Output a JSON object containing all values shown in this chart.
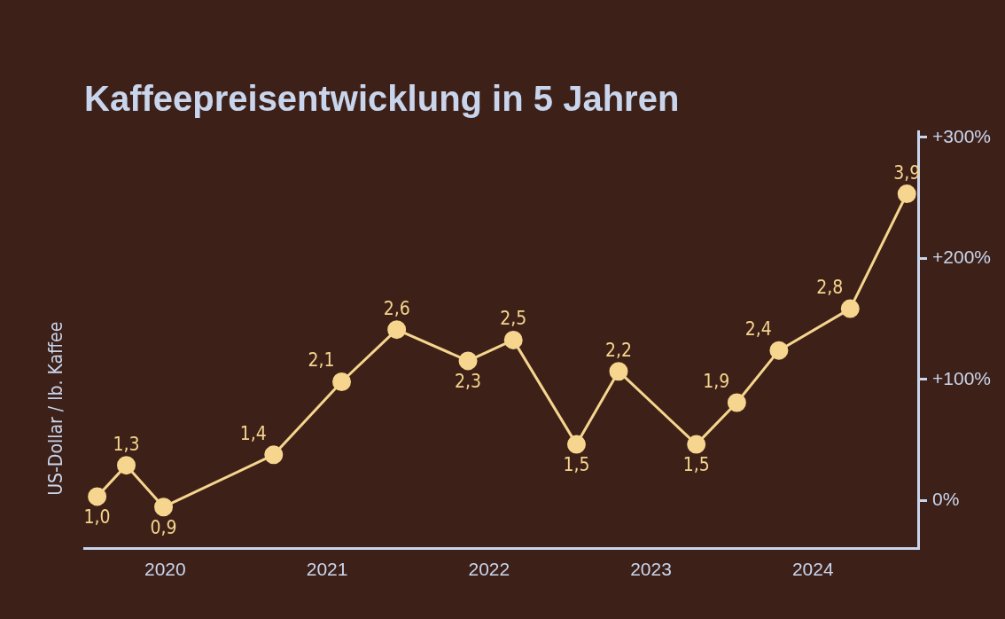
{
  "chart_data": {
    "type": "line",
    "title": "Kaffeepreisentwicklung in 5 Jahren",
    "ylabel": "US-Dollar / lb. Kaffee",
    "x": [
      2020.08,
      2020.26,
      2020.49,
      2021.17,
      2021.59,
      2021.93,
      2022.37,
      2022.65,
      2023.04,
      2023.3,
      2023.78,
      2024.03,
      2024.29,
      2024.73,
      2025.08
    ],
    "series": [
      {
        "color": "#f6d58e",
        "values": [
          1.0,
          1.3,
          0.9,
          1.4,
          2.1,
          2.6,
          2.3,
          2.5,
          1.5,
          2.2,
          1.5,
          1.9,
          2.4,
          2.8,
          3.9
        ],
        "value_labels": [
          "1,0",
          "1,3",
          "0,9",
          "1,4",
          "2,1",
          "2,6",
          "2,3",
          "2,5",
          "1,5",
          "2,2",
          "1,5",
          "1,9",
          "2,4",
          "2,8",
          "3,9"
        ]
      }
    ],
    "xlim": [
      2020,
      2025.15
    ],
    "xticks": [
      {
        "value": 2020.5,
        "label": "2020"
      },
      {
        "value": 2021.5,
        "label": "2021"
      },
      {
        "value": 2022.5,
        "label": "2022"
      },
      {
        "value": 2023.5,
        "label": "2023"
      },
      {
        "value": 2024.5,
        "label": "2024"
      }
    ],
    "y2lim": [
      -40,
      305
    ],
    "y2ticks": [
      {
        "value": 0,
        "label": "0%"
      },
      {
        "value": 100,
        "label": "+100%"
      },
      {
        "value": 200,
        "label": "+200%"
      },
      {
        "value": 300,
        "label": "+300%"
      }
    ],
    "marker": "circle",
    "grid": false,
    "legend": false
  }
}
